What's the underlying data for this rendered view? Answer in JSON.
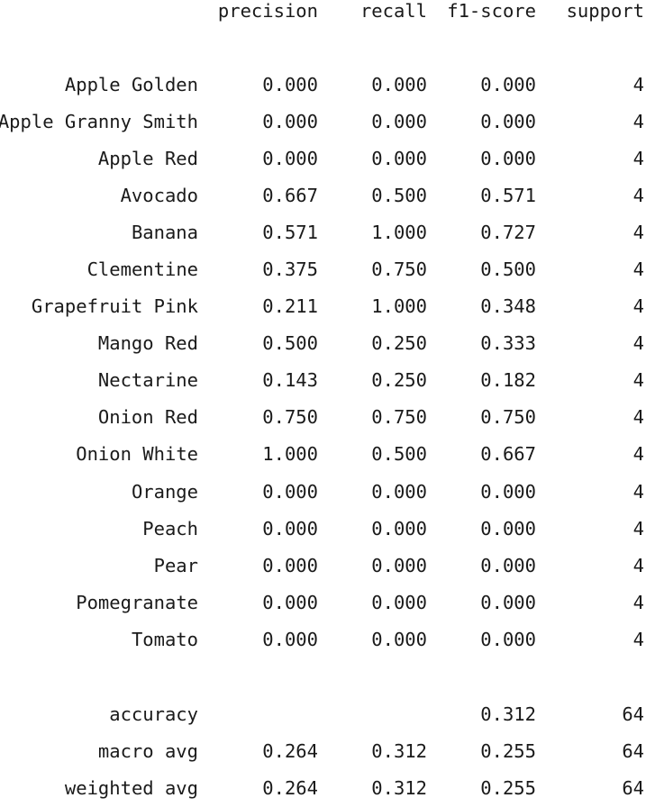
{
  "report": {
    "headers": {
      "precision": "precision",
      "recall": "recall",
      "f1_score": "f1-score",
      "support": "support"
    },
    "classes": [
      {
        "label": "Apple Golden",
        "precision": "0.000",
        "recall": "0.000",
        "f1": "0.000",
        "support": "4"
      },
      {
        "label": "Apple Granny Smith",
        "precision": "0.000",
        "recall": "0.000",
        "f1": "0.000",
        "support": "4"
      },
      {
        "label": "Apple Red",
        "precision": "0.000",
        "recall": "0.000",
        "f1": "0.000",
        "support": "4"
      },
      {
        "label": "Avocado",
        "precision": "0.667",
        "recall": "0.500",
        "f1": "0.571",
        "support": "4"
      },
      {
        "label": "Banana",
        "precision": "0.571",
        "recall": "1.000",
        "f1": "0.727",
        "support": "4"
      },
      {
        "label": "Clementine",
        "precision": "0.375",
        "recall": "0.750",
        "f1": "0.500",
        "support": "4"
      },
      {
        "label": "Grapefruit Pink",
        "precision": "0.211",
        "recall": "1.000",
        "f1": "0.348",
        "support": "4"
      },
      {
        "label": "Mango Red",
        "precision": "0.500",
        "recall": "0.250",
        "f1": "0.333",
        "support": "4"
      },
      {
        "label": "Nectarine",
        "precision": "0.143",
        "recall": "0.250",
        "f1": "0.182",
        "support": "4"
      },
      {
        "label": "Onion Red",
        "precision": "0.750",
        "recall": "0.750",
        "f1": "0.750",
        "support": "4"
      },
      {
        "label": "Onion White",
        "precision": "1.000",
        "recall": "0.500",
        "f1": "0.667",
        "support": "4"
      },
      {
        "label": "Orange",
        "precision": "0.000",
        "recall": "0.000",
        "f1": "0.000",
        "support": "4"
      },
      {
        "label": "Peach",
        "precision": "0.000",
        "recall": "0.000",
        "f1": "0.000",
        "support": "4"
      },
      {
        "label": "Pear",
        "precision": "0.000",
        "recall": "0.000",
        "f1": "0.000",
        "support": "4"
      },
      {
        "label": "Pomegranate",
        "precision": "0.000",
        "recall": "0.000",
        "f1": "0.000",
        "support": "4"
      },
      {
        "label": "Tomato",
        "precision": "0.000",
        "recall": "0.000",
        "f1": "0.000",
        "support": "4"
      }
    ],
    "summary": [
      {
        "label": "accuracy",
        "precision": "",
        "recall": "",
        "f1": "0.312",
        "support": "64"
      },
      {
        "label": "macro avg",
        "precision": "0.264",
        "recall": "0.312",
        "f1": "0.255",
        "support": "64"
      },
      {
        "label": "weighted avg",
        "precision": "0.264",
        "recall": "0.312",
        "f1": "0.255",
        "support": "64"
      }
    ]
  }
}
